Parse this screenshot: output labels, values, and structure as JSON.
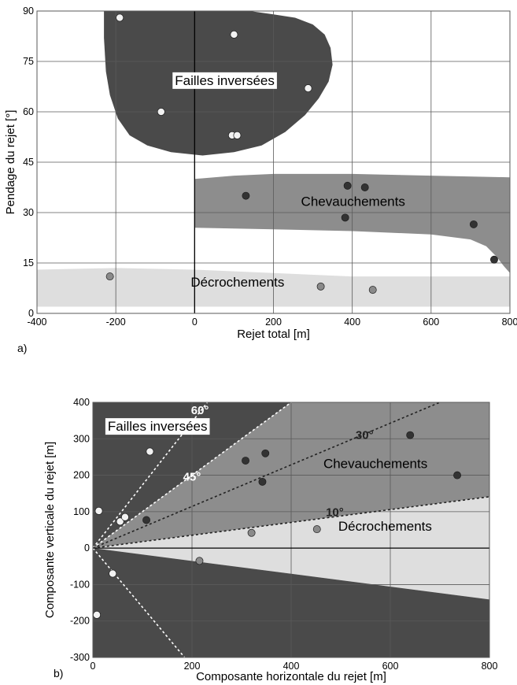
{
  "colors": {
    "background": "#ffffff",
    "grid": "#5a5a5a",
    "axis": "#000000",
    "dark_region": "#4a4a4a",
    "medium_region": "#8d8d8d",
    "light_region": "#dedede",
    "point_white": "#f2f2f2",
    "point_dark": "#333333",
    "point_grey": "#8a8a8a",
    "label_text": "#000000"
  },
  "chart_data": [
    {
      "type": "scatter",
      "panel_label": "a)",
      "title": "",
      "xlabel": "Rejet total [m]",
      "ylabel": "Pendage du rejet [°]",
      "xlim": [
        -400,
        800
      ],
      "ylim": [
        0,
        90
      ],
      "xticks": [
        -400,
        -200,
        0,
        200,
        400,
        600,
        800
      ],
      "yticks": [
        0,
        15,
        30,
        45,
        60,
        75,
        90
      ],
      "grid": true,
      "regions": [
        {
          "name": "Failles inversées",
          "color": "#4a4a4a",
          "label_pos": [
            -50,
            68
          ],
          "label_boxed": true,
          "label_color": "#000000",
          "outline": [
            [
              -230,
              90
            ],
            [
              -230,
              82
            ],
            [
              -225,
              72
            ],
            [
              -215,
              65
            ],
            [
              -195,
              58
            ],
            [
              -165,
              53
            ],
            [
              -120,
              50
            ],
            [
              -60,
              48
            ],
            [
              20,
              47
            ],
            [
              100,
              48
            ],
            [
              170,
              50
            ],
            [
              230,
              54
            ],
            [
              280,
              59
            ],
            [
              315,
              64
            ],
            [
              340,
              69
            ],
            [
              350,
              74
            ],
            [
              345,
              79
            ],
            [
              330,
              83
            ],
            [
              300,
              86
            ],
            [
              255,
              88
            ],
            [
              200,
              89
            ],
            [
              140,
              90
            ]
          ]
        },
        {
          "name": "Chevauchements",
          "color": "#8d8d8d",
          "label_pos": [
            270,
            32
          ],
          "label_boxed": false,
          "label_color": "#000000",
          "outline": [
            [
              0,
              40
            ],
            [
              100,
              41
            ],
            [
              200,
              41.5
            ],
            [
              400,
              41.5
            ],
            [
              600,
              41
            ],
            [
              800,
              40.5
            ],
            [
              800,
              12
            ],
            [
              785,
              14
            ],
            [
              765,
              17
            ],
            [
              740,
              20
            ],
            [
              700,
              22
            ],
            [
              600,
              23.5
            ],
            [
              400,
              24.5
            ],
            [
              200,
              25
            ],
            [
              0,
              25.5
            ]
          ]
        },
        {
          "name": "Décrochements",
          "color": "#dedede",
          "label_pos": [
            -10,
            8
          ],
          "label_boxed": false,
          "label_color": "#000000",
          "outline": [
            [
              -400,
              13
            ],
            [
              -200,
              13.5
            ],
            [
              0,
              13
            ],
            [
              200,
              12
            ],
            [
              400,
              11
            ],
            [
              600,
              11
            ],
            [
              800,
              11
            ],
            [
              800,
              2
            ],
            [
              -400,
              2
            ]
          ]
        }
      ],
      "series": [
        {
          "name": "Failles inversées",
          "color": "#f2f2f2",
          "points": [
            [
              -190,
              88
            ],
            [
              -85,
              60
            ],
            [
              100,
              83
            ],
            [
              95,
              53
            ],
            [
              108,
              53
            ],
            [
              288,
              67
            ]
          ]
        },
        {
          "name": "Chevauchements",
          "color": "#333333",
          "points": [
            [
              130,
              35
            ],
            [
              388,
              38
            ],
            [
              432,
              37.5
            ],
            [
              382,
              28.5
            ],
            [
              708,
              26.5
            ],
            [
              760,
              16
            ]
          ]
        },
        {
          "name": "Décrochements",
          "color": "#8a8a8a",
          "points": [
            [
              -215,
              11
            ],
            [
              320,
              8
            ],
            [
              452,
              7
            ]
          ]
        }
      ],
      "lines": []
    },
    {
      "type": "scatter",
      "panel_label": "b)",
      "title": "",
      "xlabel": "Composante horizontale du rejet [m]",
      "ylabel": "Composante verticale du rejet [m]",
      "xlim": [
        0,
        800
      ],
      "ylim": [
        -300,
        400
      ],
      "xticks": [
        0,
        200,
        400,
        600,
        800
      ],
      "yticks": [
        -300,
        -200,
        -100,
        0,
        100,
        200,
        300,
        400
      ],
      "grid": true,
      "regions": [
        {
          "name": "Failles inversées",
          "color": "#4a4a4a",
          "label_pos": [
            30,
            322
          ],
          "label_boxed": true,
          "label_color": "#000000",
          "outline": [
            [
              0,
              0
            ],
            [
              0,
              400
            ],
            [
              400,
              400
            ]
          ]
        },
        {
          "name": "Chevauchements",
          "color": "#8d8d8d",
          "label_pos": [
            465,
            220
          ],
          "label_boxed": false,
          "label_color": "#000000",
          "outline": [
            [
              0,
              0
            ],
            [
              400,
              400
            ],
            [
              800,
              400
            ],
            [
              800,
              141
            ]
          ]
        },
        {
          "name": "Décrochements",
          "color": "#dedede",
          "label_pos": [
            495,
            48
          ],
          "label_boxed": false,
          "label_color": "#000000",
          "outline": [
            [
              0,
              0
            ],
            [
              800,
              141
            ],
            [
              800,
              -141
            ]
          ]
        },
        {
          "name": "",
          "color": "#4a4a4a",
          "label_pos": [
            0,
            0
          ],
          "label_boxed": false,
          "label_color": "#000000",
          "outline": [
            [
              0,
              0
            ],
            [
              800,
              -141
            ],
            [
              800,
              -300
            ],
            [
              0,
              -300
            ]
          ]
        }
      ],
      "series": [
        {
          "name": "Failles inversées",
          "color": "#f2f2f2",
          "points": [
            [
              115,
              265
            ],
            [
              12,
              102
            ],
            [
              55,
              73
            ],
            [
              65,
              85
            ],
            [
              40,
              -70
            ],
            [
              8,
              -183
            ]
          ]
        },
        {
          "name": "Chevauchements",
          "color": "#333333",
          "points": [
            [
              108,
              77
            ],
            [
              308,
              240
            ],
            [
              348,
              260
            ],
            [
              342,
              182
            ],
            [
              640,
              310
            ],
            [
              735,
              200
            ]
          ]
        },
        {
          "name": "Décrochements",
          "color": "#8a8a8a",
          "points": [
            [
              320,
              42
            ],
            [
              452,
              52
            ],
            [
              215,
              -35
            ]
          ]
        }
      ],
      "lines": [
        {
          "label": "60°",
          "points": [
            [
              0,
              0
            ],
            [
              231,
              400
            ]
          ],
          "color": "#ffffff",
          "label_pos": [
            198,
            368
          ]
        },
        {
          "label": "45°",
          "points": [
            [
              0,
              0
            ],
            [
              400,
              400
            ]
          ],
          "color": "#ffffff",
          "label_pos": [
            182,
            185
          ]
        },
        {
          "label": "",
          "points": [
            [
              0,
              0
            ],
            [
              185,
              -300
            ]
          ],
          "color": "#ffffff",
          "label_pos": [
            0,
            0
          ]
        },
        {
          "label": "30°",
          "points": [
            [
              0,
              0
            ],
            [
              700,
              400
            ]
          ],
          "color": "#222222",
          "label_pos": [
            530,
            300
          ]
        },
        {
          "label": "10°",
          "points": [
            [
              0,
              0
            ],
            [
              800,
              141
            ]
          ],
          "color": "#222222",
          "label_pos": [
            470,
            88
          ]
        }
      ]
    }
  ]
}
